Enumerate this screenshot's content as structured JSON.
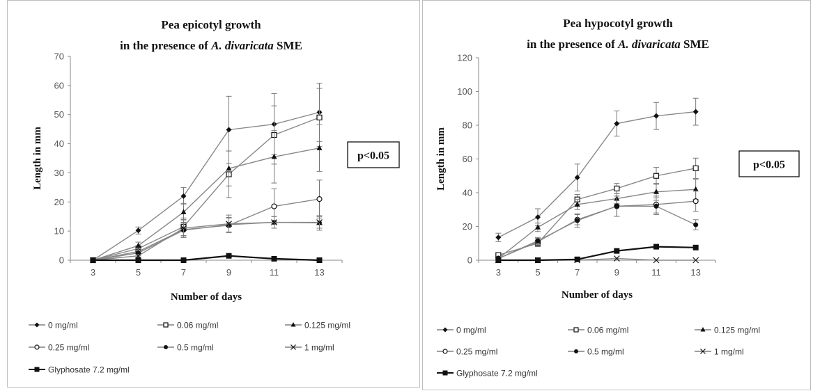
{
  "chart_data": [
    {
      "type": "line",
      "title_line1": "Pea epicotyl growth",
      "title_line2_prefix": "in the presence of ",
      "title_line2_italic": "A. divaricata",
      "title_line2_suffix": " SME",
      "xlabel": "Number of days",
      "ylabel": "Length in mm",
      "x": [
        3,
        5,
        7,
        9,
        11,
        13
      ],
      "ylim": [
        0,
        70
      ],
      "yticks": [
        0,
        10,
        20,
        30,
        40,
        50,
        60,
        70
      ],
      "annotation": "p<0.05",
      "grid": false,
      "legend_position": "bottom",
      "series": [
        {
          "name": "0 mg/ml",
          "marker": "diamond",
          "values": [
            0,
            10.2,
            22,
            44.8,
            46.7,
            50.8
          ],
          "errors": [
            0,
            1.2,
            3,
            11.5,
            10.5,
            10
          ]
        },
        {
          "name": "0.06 mg/ml",
          "marker": "square-open",
          "values": [
            0,
            4,
            11.5,
            29.5,
            43,
            49
          ],
          "errors": [
            0,
            1,
            3,
            8,
            10,
            10
          ]
        },
        {
          "name": "0.125 mg/ml",
          "marker": "triangle",
          "values": [
            0,
            5,
            16.5,
            31.5,
            35.5,
            38.5
          ],
          "errors": [
            0,
            1.2,
            3,
            6,
            9,
            8
          ]
        },
        {
          "name": "0.25 mg/ml",
          "marker": "circle-open",
          "values": [
            0,
            3,
            10.5,
            12,
            18.5,
            21
          ],
          "errors": [
            0,
            1,
            2.5,
            2.5,
            6,
            6.5
          ]
        },
        {
          "name": "0.5 mg/ml",
          "marker": "circle",
          "values": [
            0,
            2.5,
            10.3,
            12.2,
            13,
            12.8
          ],
          "errors": [
            0,
            1,
            2.5,
            2.5,
            2,
            2.5
          ]
        },
        {
          "name": "1 mg/ml",
          "marker": "x",
          "values": [
            0,
            1.5,
            11,
            12.5,
            13,
            13
          ],
          "errors": [
            0,
            0.5,
            3,
            3,
            2,
            2
          ]
        },
        {
          "name": "Glyphosate 7.2 mg/ml",
          "marker": "square",
          "values": [
            0,
            0,
            0,
            1.5,
            0.5,
            0
          ],
          "errors": [
            0,
            0,
            0,
            0,
            0,
            0
          ]
        }
      ]
    },
    {
      "type": "line",
      "title_line1": "Pea hypocotyl growth",
      "title_line2_prefix": "in the presence of  ",
      "title_line2_italic": "A. divaricata",
      "title_line2_suffix": "  SME",
      "xlabel": "Number of days",
      "ylabel": "Length in mm",
      "x": [
        3,
        5,
        7,
        9,
        11,
        13
      ],
      "ylim": [
        0,
        120
      ],
      "yticks": [
        0,
        20,
        40,
        60,
        80,
        100,
        120
      ],
      "annotation": "p<0.05",
      "grid": false,
      "legend_position": "bottom",
      "series": [
        {
          "name": "0 mg/ml",
          "marker": "diamond",
          "values": [
            13.5,
            25.5,
            49,
            81,
            85.5,
            88
          ],
          "errors": [
            2.5,
            5,
            8,
            7.5,
            8,
            8
          ]
        },
        {
          "name": "0.06 mg/ml",
          "marker": "square-open",
          "values": [
            3,
            10,
            36,
            42.5,
            50,
            54.5
          ],
          "errors": [
            1,
            2,
            3,
            3,
            5,
            6
          ]
        },
        {
          "name": "0.125 mg/ml",
          "marker": "triangle",
          "values": [
            1,
            19.5,
            33,
            36.5,
            40.5,
            42
          ],
          "errors": [
            0.5,
            2.5,
            3,
            3,
            5,
            6
          ]
        },
        {
          "name": "0.25 mg/ml",
          "marker": "circle-open",
          "values": [
            1,
            11,
            24,
            32,
            33,
            35
          ],
          "errors": [
            0.5,
            2,
            3,
            6,
            5,
            6
          ]
        },
        {
          "name": "0.5 mg/ml",
          "marker": "circle",
          "values": [
            1,
            11.5,
            23.5,
            32,
            32,
            21
          ],
          "errors": [
            0.5,
            2,
            4,
            6,
            5,
            3
          ]
        },
        {
          "name": "1 mg/ml",
          "marker": "x",
          "values": [
            0,
            0,
            0,
            1,
            0,
            0
          ],
          "errors": [
            0,
            0,
            0,
            0,
            0,
            0
          ]
        },
        {
          "name": "Glyphosate 7.2 mg/ml",
          "marker": "square",
          "values": [
            0,
            0,
            0.5,
            5.5,
            8,
            7.5
          ],
          "errors": [
            0,
            0,
            0,
            0,
            0,
            0
          ]
        }
      ]
    }
  ]
}
